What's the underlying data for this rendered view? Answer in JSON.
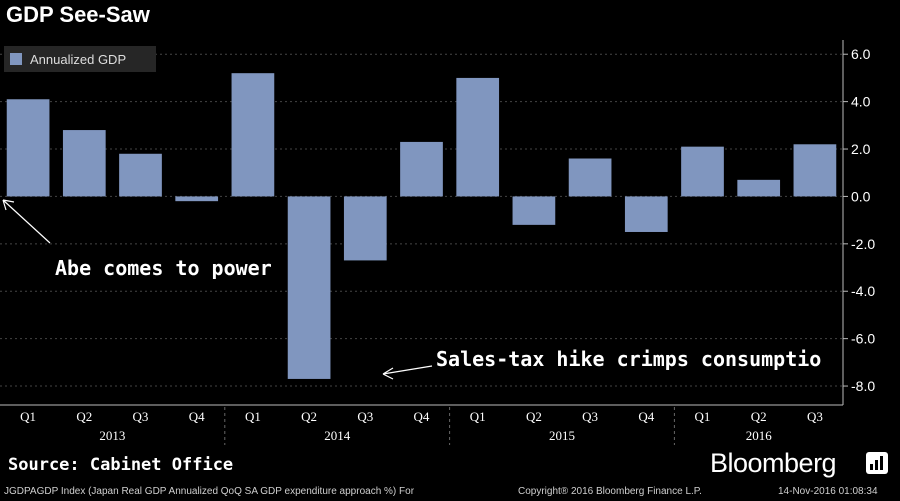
{
  "title": "GDP See-Saw",
  "source": "Source: Cabinet Office",
  "brand": "Bloomberg",
  "footer": {
    "left": "JGDPAGDP Index (Japan Real GDP Annualized QoQ SA GDP expenditure approach %) For",
    "center": "Copyright® 2016 Bloomberg Finance L.P.",
    "right": "14-Nov-2016 01:08:34"
  },
  "colors": {
    "bar": "#8096bf",
    "background": "#000000",
    "grid": "#444444",
    "text": "#ffffff"
  },
  "chart_data": {
    "type": "bar",
    "title": "GDP See-Saw",
    "categories": [
      "Q1",
      "Q2",
      "Q3",
      "Q4",
      "Q1",
      "Q2",
      "Q3",
      "Q4",
      "Q1",
      "Q2",
      "Q3",
      "Q4",
      "Q1",
      "Q2",
      "Q3"
    ],
    "years": [
      {
        "label": "2013",
        "quarters": 4
      },
      {
        "label": "2014",
        "quarters": 4
      },
      {
        "label": "2015",
        "quarters": 4
      },
      {
        "label": "2016",
        "quarters": 3
      }
    ],
    "series": [
      {
        "name": "Annualized GDP",
        "values": [
          4.1,
          2.8,
          1.8,
          -0.2,
          5.2,
          -7.7,
          -2.7,
          2.3,
          5.0,
          -1.2,
          1.6,
          -1.5,
          2.1,
          0.7,
          2.2
        ]
      }
    ],
    "ylim": [
      -8.8,
      6.6
    ],
    "yticks": [
      "6.0",
      "4.0",
      "2.0",
      "0.0",
      "-2.0",
      "-4.0",
      "-6.0",
      "-8.0"
    ],
    "ytick_values": [
      6,
      4,
      2,
      0,
      -2,
      -4,
      -6,
      -8
    ],
    "legend": "top-left",
    "grid": true,
    "annotations": [
      {
        "text": "Abe comes to power"
      },
      {
        "text": "Sales-tax hike crimps consumptio"
      }
    ]
  }
}
